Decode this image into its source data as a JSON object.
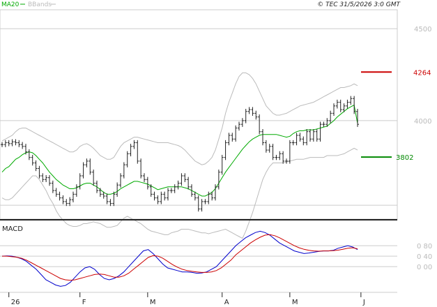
{
  "header": {
    "ma_legend": "MA20",
    "bb_legend": "BBands",
    "copyright": "© TEC 31/5/2026 3:0 GMT"
  },
  "colors": {
    "price": "#222222",
    "ma": "#00aa00",
    "bbands": "#bbbbbb",
    "resistance": "#cc0000",
    "support": "#008800",
    "macd": "#0000cc",
    "signal": "#cc0000",
    "grid": "#cccccc"
  },
  "chart_data": [
    {
      "type": "ohlc",
      "yticks": [
        "4500",
        "4000"
      ],
      "ytick_values": [
        4500,
        4000
      ],
      "ylim": [
        3480,
        4580
      ],
      "xticks": [
        {
          "label": "26",
          "index": 2
        },
        {
          "label": "F",
          "index": 23
        },
        {
          "label": "M",
          "index": 43
        },
        {
          "label": "A",
          "index": 65
        },
        {
          "label": "M",
          "index": 85
        },
        {
          "label": "J",
          "index": 106
        }
      ],
      "levels": [
        {
          "name": "resistance",
          "value": 4264,
          "label": "4264"
        },
        {
          "name": "support",
          "value": 3802,
          "label": "3802"
        }
      ],
      "close": [
        3870,
        3880,
        3875,
        3885,
        3880,
        3870,
        3860,
        3830,
        3800,
        3770,
        3740,
        3700,
        3680,
        3690,
        3660,
        3620,
        3600,
        3580,
        3560,
        3550,
        3570,
        3600,
        3640,
        3700,
        3760,
        3780,
        3720,
        3660,
        3620,
        3600,
        3590,
        3560,
        3550,
        3600,
        3650,
        3700,
        3760,
        3820,
        3860,
        3880,
        3780,
        3700,
        3680,
        3640,
        3600,
        3580,
        3560,
        3600,
        3580,
        3620,
        3620,
        3640,
        3660,
        3700,
        3680,
        3640,
        3600,
        3580,
        3520,
        3560,
        3560,
        3600,
        3580,
        3640,
        3720,
        3800,
        3880,
        3920,
        3900,
        3960,
        3980,
        4000,
        4050,
        4060,
        4040,
        4020,
        3940,
        3880,
        3840,
        3860,
        3800,
        3800,
        3820,
        3780,
        3780,
        3880,
        3880,
        3920,
        3900,
        3880,
        3940,
        3900,
        3940,
        3900,
        3980,
        3980,
        4000,
        4040,
        4080,
        4100,
        4060,
        4080,
        4100,
        4120,
        4050,
        3980
      ],
      "ma20": [
        3720,
        3740,
        3750,
        3770,
        3790,
        3800,
        3815,
        3825,
        3830,
        3825,
        3810,
        3790,
        3770,
        3745,
        3720,
        3700,
        3680,
        3665,
        3650,
        3640,
        3630,
        3630,
        3635,
        3645,
        3655,
        3660,
        3660,
        3650,
        3640,
        3625,
        3610,
        3600,
        3600,
        3605,
        3615,
        3630,
        3640,
        3650,
        3660,
        3670,
        3670,
        3665,
        3660,
        3655,
        3645,
        3635,
        3625,
        3630,
        3635,
        3640,
        3640,
        3640,
        3640,
        3640,
        3635,
        3630,
        3620,
        3610,
        3600,
        3590,
        3590,
        3600,
        3610,
        3630,
        3660,
        3690,
        3720,
        3745,
        3770,
        3795,
        3820,
        3845,
        3865,
        3885,
        3900,
        3910,
        3920,
        3925,
        3925,
        3925,
        3925,
        3925,
        3920,
        3915,
        3910,
        3915,
        3930,
        3940,
        3945,
        3945,
        3950,
        3950,
        3950,
        3955,
        3960,
        3965,
        3970,
        3985,
        4000,
        4020,
        4035,
        4050,
        4065,
        4075,
        4085,
        3985
      ],
      "bb_upper": [
        3890,
        3900,
        3910,
        3920,
        3940,
        3955,
        3960,
        3960,
        3950,
        3940,
        3930,
        3920,
        3910,
        3900,
        3890,
        3880,
        3870,
        3860,
        3850,
        3840,
        3830,
        3830,
        3840,
        3860,
        3870,
        3875,
        3865,
        3850,
        3830,
        3810,
        3800,
        3790,
        3790,
        3800,
        3830,
        3860,
        3880,
        3890,
        3900,
        3910,
        3910,
        3905,
        3900,
        3895,
        3890,
        3885,
        3880,
        3880,
        3880,
        3880,
        3875,
        3870,
        3865,
        3855,
        3840,
        3820,
        3800,
        3780,
        3770,
        3760,
        3765,
        3780,
        3800,
        3840,
        3900,
        3960,
        4040,
        4100,
        4150,
        4200,
        4240,
        4260,
        4260,
        4250,
        4230,
        4200,
        4160,
        4120,
        4080,
        4060,
        4040,
        4030,
        4030,
        4035,
        4040,
        4050,
        4060,
        4070,
        4080,
        4085,
        4090,
        4095,
        4100,
        4110,
        4120,
        4130,
        4140,
        4150,
        4160,
        4170,
        4180,
        4180,
        4185,
        4190,
        4200,
        4190
      ],
      "bb_lower": [
        3580,
        3570,
        3570,
        3580,
        3600,
        3620,
        3640,
        3660,
        3680,
        3700,
        3700,
        3680,
        3650,
        3620,
        3580,
        3550,
        3510,
        3480,
        3460,
        3440,
        3430,
        3425,
        3425,
        3430,
        3440,
        3440,
        3445,
        3450,
        3445,
        3440,
        3430,
        3420,
        3420,
        3425,
        3430,
        3450,
        3470,
        3480,
        3470,
        3460,
        3450,
        3440,
        3425,
        3410,
        3400,
        3395,
        3390,
        3385,
        3380,
        3380,
        3390,
        3395,
        3400,
        3410,
        3410,
        3410,
        3405,
        3400,
        3395,
        3390,
        3390,
        3385,
        3390,
        3395,
        3400,
        3405,
        3410,
        3400,
        3390,
        3380,
        3370,
        3360,
        3400,
        3450,
        3500,
        3560,
        3620,
        3680,
        3720,
        3750,
        3770,
        3770,
        3770,
        3770,
        3775,
        3780,
        3785,
        3790,
        3790,
        3790,
        3795,
        3800,
        3800,
        3800,
        3800,
        3800,
        3810,
        3810,
        3810,
        3810,
        3815,
        3820,
        3830,
        3840,
        3850,
        3840
      ]
    },
    {
      "type": "line",
      "title": "MACD",
      "yticks": [
        "0 80",
        "0 40",
        "0 00"
      ],
      "ytick_values": [
        0.8,
        0.4,
        0.0
      ],
      "ylim": [
        -0.9,
        1.6
      ],
      "series": [
        {
          "name": "",
          "color_key": "macd",
          "values": [
            0.4,
            0.41,
            0.4,
            0.36,
            0.3,
            0.2,
            0.05,
            -0.1,
            -0.3,
            -0.5,
            -0.6,
            -0.7,
            -0.75,
            -0.72,
            -0.6,
            -0.4,
            -0.2,
            -0.05,
            0.0,
            -0.1,
            -0.3,
            -0.45,
            -0.5,
            -0.45,
            -0.35,
            -0.2,
            0.0,
            0.2,
            0.4,
            0.6,
            0.65,
            0.5,
            0.3,
            0.1,
            -0.05,
            -0.1,
            -0.15,
            -0.2,
            -0.2,
            -0.22,
            -0.25,
            -0.24,
            -0.2,
            -0.1,
            0.0,
            0.2,
            0.4,
            0.6,
            0.8,
            0.95,
            1.1,
            1.2,
            1.3,
            1.35,
            1.3,
            1.2,
            1.05,
            0.9,
            0.8,
            0.7,
            0.6,
            0.55,
            0.5,
            0.52,
            0.55,
            0.58,
            0.6,
            0.6,
            0.62,
            0.7,
            0.75,
            0.8,
            0.75,
            0.65
          ]
        },
        {
          "name": "",
          "color_key": "signal",
          "values": [
            0.4,
            0.4,
            0.38,
            0.36,
            0.32,
            0.25,
            0.15,
            0.05,
            -0.05,
            -0.15,
            -0.25,
            -0.35,
            -0.45,
            -0.5,
            -0.52,
            -0.5,
            -0.45,
            -0.4,
            -0.35,
            -0.3,
            -0.28,
            -0.3,
            -0.35,
            -0.4,
            -0.4,
            -0.35,
            -0.25,
            -0.1,
            0.05,
            0.2,
            0.35,
            0.42,
            0.4,
            0.32,
            0.2,
            0.08,
            -0.02,
            -0.1,
            -0.15,
            -0.18,
            -0.2,
            -0.22,
            -0.22,
            -0.2,
            -0.15,
            -0.05,
            0.1,
            0.25,
            0.45,
            0.6,
            0.75,
            0.9,
            1.02,
            1.12,
            1.2,
            1.22,
            1.18,
            1.1,
            1.0,
            0.9,
            0.8,
            0.72,
            0.66,
            0.62,
            0.6,
            0.59,
            0.6,
            0.6,
            0.61,
            0.63,
            0.66,
            0.7,
            0.72,
            0.68
          ]
        }
      ]
    }
  ]
}
